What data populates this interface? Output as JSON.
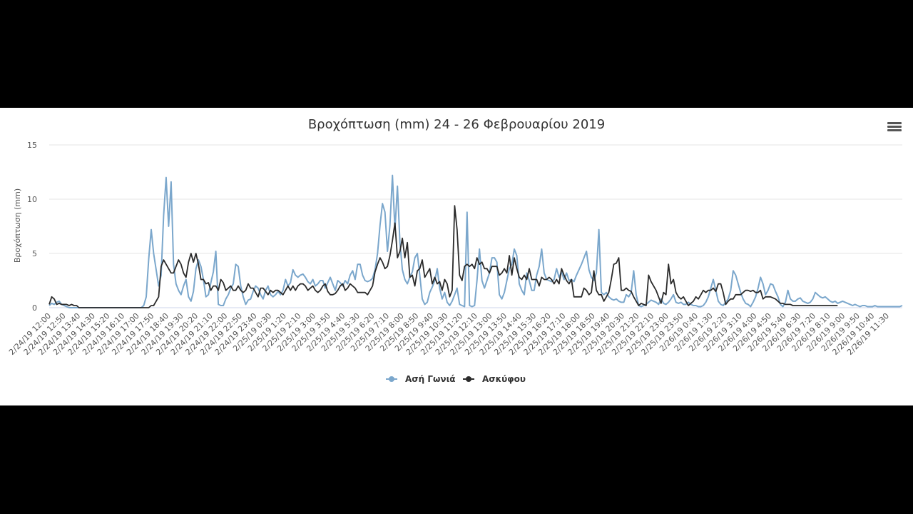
{
  "menu": {
    "icon": "hamburger-menu-icon"
  },
  "chart_data": {
    "type": "line",
    "title": "Βροχόπτωση (mm) 24 - 26 Φεβρουαρίου 2019",
    "ylabel": "Βροχόπτωση (mm)",
    "xlabel": "",
    "ylim": [
      0,
      15
    ],
    "yticks": [
      0,
      5,
      10,
      15
    ],
    "grid": true,
    "legend_position": "bottom-center",
    "xtick_labels": [
      "2/24/19 12:00",
      "2/24/19 12:50",
      "2/24/19 13:40",
      "2/24/19 14:30",
      "2/24/19 15:20",
      "2/24/19 16:10",
      "2/24/19 17:00",
      "2/24/19 17:50",
      "2/24/19 18:40",
      "2/24/19 19:30",
      "2/24/19 20:20",
      "2/24/19 21:10",
      "2/24/19 22:00",
      "2/24/19 22:50",
      "2/24/19 23:40",
      "2/25/19 0:30",
      "2/25/19 1:20",
      "2/25/19 2:10",
      "2/25/19 3:00",
      "2/25/19 3:50",
      "2/25/19 4:40",
      "2/25/19 5:30",
      "2/25/19 6:20",
      "2/25/19 7:10",
      "2/25/19 8:00",
      "2/25/19 8:50",
      "2/25/19 9:40",
      "2/25/19 10:30",
      "2/25/19 11:20",
      "2/25/19 12:10",
      "2/25/19 13:00",
      "2/25/19 13:50",
      "2/25/19 14:40",
      "2/25/19 15:30",
      "2/25/19 16:20",
      "2/25/19 17:10",
      "2/25/19 18:00",
      "2/25/19 18:50",
      "2/25/19 19:40",
      "2/25/19 20:30",
      "2/25/19 21:20",
      "2/25/19 22:10",
      "2/25/19 23:00",
      "2/25/19 23:50",
      "2/26/19 0:40",
      "2/26/19 1:30",
      "2/26/19 2:20",
      "2/26/19 3:10",
      "2/26/19 4:00",
      "2/26/19 4:50",
      "2/26/19 5:40",
      "2/26/19 6:30",
      "2/26/19 7:20",
      "2/26/19 8:10",
      "2/26/19 9:00",
      "2/26/19 9:50",
      "2/26/19 10:40",
      "2/26/19 11:30"
    ],
    "series": [
      {
        "name": "Ασή Γωνιά",
        "color": "#7ba7cc",
        "values": [
          0.2,
          0.4,
          0.3,
          0.5,
          0.6,
          0.3,
          0.2,
          0.1,
          0,
          0,
          0,
          0,
          0,
          0,
          0,
          0,
          0,
          0,
          0,
          0,
          0,
          0,
          0,
          0,
          0,
          0,
          0,
          0,
          0,
          0,
          0,
          0,
          0,
          0,
          0,
          0,
          0,
          0,
          0.2,
          1,
          4.5,
          7.2,
          5,
          3.5,
          2,
          3,
          8.5,
          12,
          7.5,
          11.6,
          4,
          2.2,
          1.6,
          1.2,
          2,
          2.6,
          1,
          0.6,
          1.5,
          3.6,
          4.4,
          3.8,
          2.6,
          1,
          1.2,
          2.3,
          3.3,
          5.2,
          0.3,
          0.2,
          0.2,
          0.8,
          1.2,
          1.8,
          2.2,
          4,
          3.8,
          2,
          1,
          0.3,
          0.7,
          0.8,
          1.5,
          2,
          1.8,
          1.2,
          0.8,
          1.6,
          2,
          1.2,
          1,
          1.2,
          1.5,
          1.2,
          1.6,
          2.6,
          2,
          2.3,
          3.5,
          3,
          2.8,
          3,
          3.1,
          2.8,
          2.4,
          2.2,
          2.6,
          2,
          2.2,
          2.5,
          2.5,
          1.8,
          2.3,
          2.8,
          2.2,
          1.6,
          2.5,
          2.3,
          2,
          2.5,
          2.2,
          3,
          3.4,
          2.6,
          4,
          4,
          3,
          2.5,
          2.4,
          2.5,
          2.7,
          3.5,
          5,
          7.6,
          9.6,
          8.8,
          5.2,
          7.6,
          12.2,
          7.2,
          11.2,
          6,
          3.5,
          2.6,
          2.2,
          2.8,
          3.3,
          4.6,
          5,
          3,
          0.8,
          0.3,
          0.5,
          1.4,
          1.9,
          2.5,
          3.6,
          1.8,
          0.8,
          1.4,
          0.5,
          0.2,
          0.6,
          1.2,
          1.8,
          0.3,
          0.2,
          0.1,
          8.8,
          0.2,
          0.1,
          0.2,
          2.5,
          5.4,
          2.5,
          1.8,
          2.5,
          3.2,
          4.6,
          4.6,
          4.2,
          1.2,
          0.8,
          1.4,
          2.5,
          3.6,
          4,
          5.4,
          4.8,
          2.2,
          1.6,
          1.2,
          3.2,
          2.5,
          1.6,
          1.6,
          3,
          3.8,
          5.4,
          3.2,
          2.6,
          2.5,
          2.4,
          2.6,
          3.6,
          2.8,
          3.3,
          2.6,
          3.2,
          2.5,
          2.6,
          2.4,
          3,
          3.5,
          4,
          4.6,
          5.2,
          3.5,
          2.8,
          2.5,
          3.2,
          7.2,
          1.4,
          1.2,
          1.4,
          1,
          0.8,
          0.7,
          0.8,
          0.6,
          0.5,
          0.5,
          1.2,
          1,
          1.4,
          3.4,
          1.2,
          0.2,
          0.1,
          0.2,
          0.3,
          0.5,
          0.7,
          0.6,
          0.5,
          0.3,
          0.8,
          0.4,
          0.3,
          0.5,
          0.8,
          1.2,
          0.5,
          0.4,
          0.5,
          0.3,
          0.3,
          0.5,
          0.3,
          0.2,
          0.2,
          0.1,
          0.1,
          0.2,
          0.5,
          1,
          1.8,
          2.6,
          1.6,
          0.6,
          0.3,
          0.2,
          0.5,
          0.8,
          1.6,
          3.4,
          3,
          2.2,
          1.4,
          0.8,
          0.4,
          0.3,
          0.1,
          0.5,
          1,
          1.8,
          2.8,
          2.2,
          1.2,
          1.6,
          2.2,
          2.1,
          1.5,
          1,
          0.3,
          0.1,
          0.5,
          1.6,
          0.8,
          0.6,
          0.6,
          0.8,
          0.9,
          0.6,
          0.5,
          0.4,
          0.5,
          0.8,
          1.4,
          1.2,
          1,
          0.9,
          1,
          0.8,
          0.6,
          0.5,
          0.6,
          0.4,
          0.5,
          0.6,
          0.5,
          0.4,
          0.3,
          0.2,
          0.3,
          0.2,
          0.1,
          0.2,
          0.2,
          0.1,
          0.1,
          0.1,
          0.2,
          0.1,
          0.1,
          0.1,
          0.1,
          0.1,
          0.1,
          0.1,
          0.1,
          0.1,
          0.1,
          0.2
        ]
      },
      {
        "name": "Ασκύφου",
        "color": "#2b2b2b",
        "values": [
          0.3,
          1,
          0.8,
          0.3,
          0.4,
          0.3,
          0.3,
          0.3,
          0.2,
          0.3,
          0.2,
          0.2,
          0,
          0,
          0,
          0,
          0,
          0,
          0,
          0,
          0,
          0,
          0,
          0,
          0,
          0,
          0,
          0,
          0,
          0,
          0,
          0,
          0,
          0,
          0,
          0,
          0,
          0,
          0,
          0,
          0,
          0.2,
          0.2,
          0.6,
          1,
          3.8,
          4.4,
          4,
          3.6,
          3.2,
          3.2,
          3.8,
          4.4,
          4,
          3.2,
          2.8,
          4.2,
          5,
          4.2,
          5,
          4,
          2.6,
          2.6,
          2.2,
          2.3,
          1.6,
          2,
          2,
          1.6,
          2.6,
          2.3,
          1.6,
          1.8,
          2,
          1.6,
          1.6,
          2,
          1.6,
          1.4,
          1.6,
          2.2,
          1.8,
          1.8,
          1.4,
          1,
          1.8,
          1.8,
          1.5,
          1.2,
          1.6,
          1.4,
          1.6,
          1.6,
          1.4,
          1.2,
          1.6,
          2,
          1.6,
          2,
          1.6,
          2,
          2.2,
          2.2,
          2,
          1.6,
          1.8,
          2,
          1.6,
          1.4,
          1.6,
          2,
          2.2,
          1.5,
          1.2,
          1.2,
          1.3,
          1.6,
          2,
          2.2,
          1.6,
          1.8,
          2.2,
          2,
          1.8,
          1.4,
          1.4,
          1.4,
          1.4,
          1.2,
          1.6,
          2,
          3.3,
          4,
          4.6,
          4.2,
          3.6,
          3.8,
          4.8,
          6.2,
          7.8,
          4.6,
          5.2,
          6.4,
          4.6,
          6,
          2.8,
          3,
          2,
          3.4,
          3.6,
          4.4,
          2.8,
          3.2,
          3.6,
          2.2,
          2.8,
          2.2,
          2.4,
          1.6,
          2.6,
          2.2,
          1,
          1.6,
          9.4,
          7.2,
          3,
          2.5,
          3.8,
          4,
          3.8,
          4,
          3.6,
          4.6,
          4,
          4.2,
          3.6,
          3.6,
          3.2,
          3.8,
          3.8,
          3.8,
          3,
          3.2,
          3.6,
          3.2,
          4.8,
          3,
          4.6,
          3.6,
          2.8,
          2.6,
          3,
          2.6,
          3.6,
          2.6,
          2.6,
          2.6,
          2,
          2.8,
          2.6,
          2.6,
          2.8,
          2.6,
          2.2,
          2.6,
          2.2,
          3.6,
          3,
          2.5,
          2.2,
          2.6,
          1,
          1,
          1,
          1,
          1.8,
          1.6,
          1.2,
          1.4,
          3.4,
          1.6,
          1.2,
          1.2,
          0.6,
          1,
          1.4,
          2.6,
          4,
          4.1,
          4.6,
          1.6,
          1.6,
          1.8,
          1.6,
          1.5,
          1,
          0.6,
          0.2,
          0.4,
          0.3,
          0.2,
          3,
          2.4,
          2,
          1.6,
          1,
          0.4,
          1.4,
          1.2,
          4,
          2.2,
          2.6,
          1.4,
          1,
          0.8,
          1,
          0.6,
          0.2,
          0.4,
          0.6,
          1,
          0.8,
          1.2,
          1.6,
          1.4,
          1.6,
          1.6,
          1.8,
          1.5,
          2.2,
          2.2,
          1.4,
          0.3,
          0.6,
          0.8,
          0.8,
          1.2,
          1.2,
          1.2,
          1.4,
          1.6,
          1.6,
          1.5,
          1.6,
          1.4,
          1.4,
          1.6,
          0.8,
          1,
          1,
          1,
          0.9,
          0.8,
          0.6,
          0.4,
          0.4,
          0.3,
          0.3,
          0.3,
          0.2,
          0.2,
          0.2,
          0.2,
          0.2,
          0.2,
          0.2,
          0.2,
          0.2,
          0.2,
          0.2,
          0.2,
          0.2,
          0.2,
          0.2,
          0.2,
          0.2,
          0.2,
          0.2
        ]
      }
    ]
  }
}
